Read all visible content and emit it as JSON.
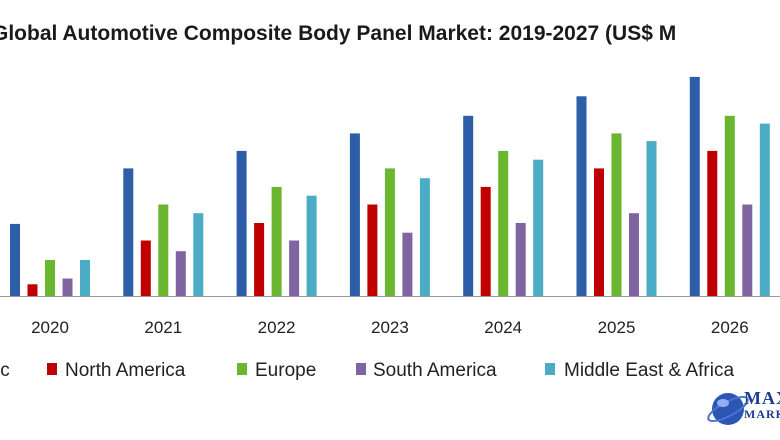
{
  "chart_data": {
    "type": "bar",
    "title": "Global Automotive Composite Body Panel Market: 2019-2027 (US$ M",
    "categories": [
      "2020",
      "2021",
      "2022",
      "2023",
      "2024",
      "2025",
      "2026"
    ],
    "series": [
      {
        "name": "Asia Pacific",
        "visible_label": "ic",
        "color": "#2e5ea8",
        "values": [
          74,
          131,
          149,
          167,
          185,
          205,
          225
        ]
      },
      {
        "name": "North America",
        "color": "#c00000",
        "values": [
          12,
          57,
          75,
          94,
          112,
          131,
          149
        ]
      },
      {
        "name": "Europe",
        "color": "#6ab62e",
        "values": [
          37,
          94,
          112,
          131,
          149,
          167,
          185
        ]
      },
      {
        "name": "South America",
        "color": "#8064a2",
        "values": [
          18,
          46,
          57,
          65,
          75,
          85,
          94
        ]
      },
      {
        "name": "Middle East & Africa",
        "color": "#4bacc6",
        "values": [
          37,
          85,
          103,
          121,
          140,
          159,
          177
        ]
      }
    ],
    "xlabel": "",
    "ylabel": "",
    "ylim": [
      0,
      230
    ],
    "grid": false,
    "legend_position": "bottom"
  },
  "logo": {
    "line1": "MAX",
    "line2": "MARKE"
  }
}
